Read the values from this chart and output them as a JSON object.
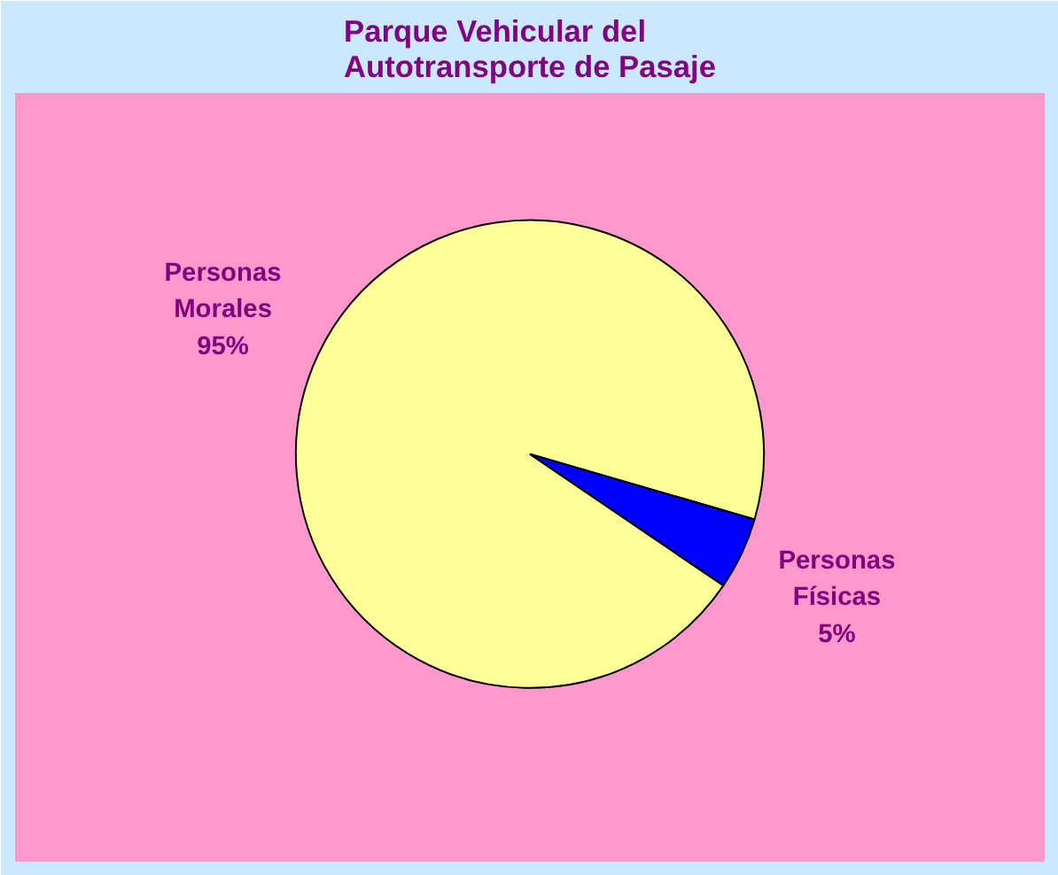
{
  "chart_data": {
    "type": "pie",
    "title": "Parque Vehicular del\nAutotransporte de Pasaje",
    "categories": [
      "Personas Morales",
      "Personas Físicas"
    ],
    "values": [
      95,
      5
    ],
    "colors": [
      "#ffff99",
      "#0000ff"
    ],
    "value_labels": [
      "95%",
      "5%"
    ]
  }
}
